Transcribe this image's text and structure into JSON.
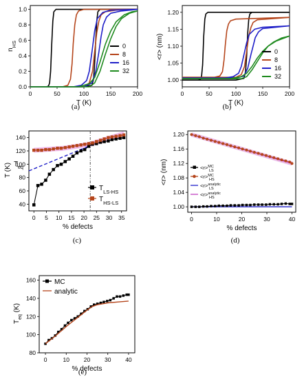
{
  "chart_data": [
    {
      "panel": "(a)",
      "type": "line",
      "xlabel": "T (K)",
      "ylabel": "n",
      "ylabel_sub": "HS",
      "xlim": [
        0,
        200
      ],
      "ylim": [
        0,
        1.05
      ],
      "xticks": [
        "0",
        "50",
        "100",
        "150",
        "200"
      ],
      "yticks": [
        "0.0",
        "0.2",
        "0.4",
        "0.6",
        "0.8",
        "1.0"
      ],
      "legend_position": "inside-right",
      "series": [
        {
          "name": "0",
          "color": "#000000",
          "x": [
            0,
            30,
            34,
            36,
            38,
            40,
            42,
            44,
            48,
            60,
            100,
            150,
            200
          ],
          "y": [
            0.0,
            0.0,
            0.01,
            0.05,
            0.2,
            0.55,
            0.85,
            0.97,
            1.0,
            1.0,
            1.0,
            1.0,
            1.0
          ]
        },
        {
          "name": "0",
          "color": "#000000",
          "x": [
            0,
            50,
            100,
            115,
            118,
            120,
            122,
            124,
            126,
            130,
            150,
            200
          ],
          "y": [
            0.0,
            0.0,
            0.0,
            0.02,
            0.1,
            0.3,
            0.6,
            0.85,
            0.97,
            1.0,
            1.0,
            1.0
          ]
        },
        {
          "name": "8",
          "color": "#b5451b",
          "x": [
            0,
            60,
            70,
            75,
            78,
            80,
            83,
            86,
            90,
            100,
            150,
            200
          ],
          "y": [
            0.0,
            0.0,
            0.02,
            0.1,
            0.3,
            0.55,
            0.8,
            0.93,
            0.98,
            1.0,
            1.0,
            1.0
          ]
        },
        {
          "name": "8",
          "color": "#b5451b",
          "x": [
            0,
            100,
            110,
            116,
            120,
            124,
            128,
            132,
            140,
            160,
            200
          ],
          "y": [
            0.0,
            0.0,
            0.05,
            0.2,
            0.45,
            0.7,
            0.85,
            0.93,
            0.97,
            0.99,
            1.0
          ]
        },
        {
          "name": "16",
          "color": "#1e1ec8",
          "x": [
            0,
            80,
            95,
            105,
            110,
            115,
            120,
            125,
            135,
            150,
            200
          ],
          "y": [
            0.0,
            0.0,
            0.02,
            0.08,
            0.2,
            0.45,
            0.72,
            0.88,
            0.96,
            0.99,
            1.0
          ]
        },
        {
          "name": "16",
          "color": "#1e1ec8",
          "x": [
            0,
            100,
            115,
            122,
            128,
            132,
            136,
            142,
            150,
            170,
            200
          ],
          "y": [
            0.0,
            0.0,
            0.05,
            0.2,
            0.45,
            0.65,
            0.8,
            0.9,
            0.95,
            0.98,
            1.0
          ]
        },
        {
          "name": "32",
          "color": "#1e8a1e",
          "x": [
            0,
            90,
            110,
            120,
            130,
            140,
            150,
            160,
            175,
            190,
            200
          ],
          "y": [
            0.0,
            0.0,
            0.04,
            0.12,
            0.32,
            0.55,
            0.72,
            0.84,
            0.93,
            0.97,
            0.98
          ]
        },
        {
          "name": "32",
          "color": "#1e8a1e",
          "x": [
            0,
            110,
            120,
            130,
            140,
            150,
            160,
            170,
            185,
            200
          ],
          "y": [
            0.0,
            0.0,
            0.05,
            0.2,
            0.42,
            0.62,
            0.78,
            0.88,
            0.95,
            0.98
          ]
        }
      ],
      "legend": [
        {
          "label": "0",
          "color": "#000000"
        },
        {
          "label": "8",
          "color": "#b5451b"
        },
        {
          "label": "16",
          "color": "#1e1ec8"
        },
        {
          "label": "32",
          "color": "#1e8a1e"
        }
      ]
    },
    {
      "panel": "(b)",
      "type": "line",
      "xlabel": "T (K)",
      "ylabel": "<r> (nm)",
      "xlim": [
        0,
        200
      ],
      "ylim": [
        0.98,
        1.22
      ],
      "xticks": [
        "0",
        "50",
        "100",
        "150",
        "200"
      ],
      "yticks": [
        "1.00",
        "1.05",
        "1.10",
        "1.15",
        "1.20"
      ],
      "legend_position": "inside-right",
      "series": [
        {
          "name": "0",
          "color": "#000000",
          "x": [
            0,
            30,
            34,
            36,
            38,
            40,
            42,
            44,
            48,
            60,
            200
          ],
          "y": [
            1.0,
            1.0,
            1.003,
            1.012,
            1.045,
            1.13,
            1.18,
            1.195,
            1.2,
            1.2,
            1.2
          ]
        },
        {
          "name": "0",
          "color": "#000000",
          "x": [
            0,
            100,
            115,
            118,
            120,
            122,
            124,
            126,
            130,
            200
          ],
          "y": [
            1.0,
            1.0,
            1.005,
            1.025,
            1.07,
            1.14,
            1.18,
            1.195,
            1.2,
            1.2
          ]
        },
        {
          "name": "8",
          "color": "#b5451b",
          "x": [
            0,
            60,
            70,
            75,
            78,
            80,
            83,
            86,
            90,
            100,
            200
          ],
          "y": [
            1.008,
            1.008,
            1.012,
            1.025,
            1.06,
            1.1,
            1.145,
            1.165,
            1.175,
            1.18,
            1.185
          ]
        },
        {
          "name": "8",
          "color": "#b5451b",
          "x": [
            0,
            100,
            110,
            116,
            120,
            124,
            128,
            132,
            140,
            200
          ],
          "y": [
            1.008,
            1.008,
            1.016,
            1.04,
            1.085,
            1.13,
            1.155,
            1.17,
            1.178,
            1.185
          ]
        },
        {
          "name": "16",
          "color": "#1e1ec8",
          "x": [
            0,
            80,
            95,
            105,
            110,
            115,
            120,
            125,
            135,
            150,
            200
          ],
          "y": [
            1.006,
            1.006,
            1.01,
            1.02,
            1.04,
            1.075,
            1.11,
            1.135,
            1.15,
            1.156,
            1.16
          ]
        },
        {
          "name": "16",
          "color": "#1e1ec8",
          "x": [
            0,
            100,
            115,
            122,
            128,
            132,
            136,
            142,
            150,
            200
          ],
          "y": [
            1.006,
            1.006,
            1.012,
            1.035,
            1.075,
            1.1,
            1.125,
            1.142,
            1.152,
            1.16
          ]
        },
        {
          "name": "32",
          "color": "#1e8a1e",
          "x": [
            0,
            90,
            110,
            120,
            130,
            140,
            150,
            160,
            175,
            200
          ],
          "y": [
            1.004,
            1.004,
            1.01,
            1.02,
            1.04,
            1.065,
            1.085,
            1.1,
            1.115,
            1.13
          ]
        },
        {
          "name": "32",
          "color": "#1e8a1e",
          "x": [
            0,
            110,
            120,
            130,
            140,
            150,
            160,
            170,
            185,
            200
          ],
          "y": [
            1.004,
            1.004,
            1.01,
            1.03,
            1.055,
            1.08,
            1.1,
            1.112,
            1.124,
            1.13
          ]
        }
      ],
      "legend": [
        {
          "label": "0",
          "color": "#000000"
        },
        {
          "label": "8",
          "color": "#b5451b"
        },
        {
          "label": "16",
          "color": "#1e1ec8"
        },
        {
          "label": "32",
          "color": "#1e8a1e"
        }
      ]
    },
    {
      "panel": "(c)",
      "type": "line",
      "xlabel": "% defects",
      "ylabel": "T (K)",
      "xlim": [
        -2,
        37
      ],
      "ylim": [
        30,
        150
      ],
      "xticks": [
        "0",
        "5",
        "10",
        "15",
        "20",
        "25",
        "30",
        "35"
      ],
      "yticks": [
        "40",
        "60",
        "80",
        "100",
        "120",
        "140"
      ],
      "annotation": {
        "text": "T",
        "sub": "eq",
        "color": "#1e1ec8"
      },
      "vline_x": 22.5,
      "legend_position": "bottom-right",
      "series": [
        {
          "name": "T",
          "name_sub": "LS-HS",
          "color": "#000000",
          "marker": "square",
          "x": [
            0,
            1.6,
            3.1,
            4.7,
            6.2,
            7.8,
            9.4,
            10.9,
            12.5,
            14.1,
            15.6,
            17.2,
            18.8,
            20.3,
            21.9,
            23.4,
            25,
            26.6,
            28.1,
            29.7,
            31.2,
            32.8,
            34.4,
            35.9
          ],
          "y": [
            39,
            68,
            70,
            76,
            85,
            92,
            98,
            100,
            104,
            108,
            112,
            117,
            120,
            122,
            127,
            130,
            131,
            133,
            134,
            135,
            137,
            138,
            139,
            140
          ]
        },
        {
          "name": "T",
          "name_sub": "HS-LS",
          "color": "#b5451b",
          "marker": "square",
          "x": [
            0,
            1.6,
            3.1,
            4.7,
            6.2,
            7.8,
            9.4,
            10.9,
            12.5,
            14.1,
            15.6,
            17.2,
            18.8,
            20.3,
            21.9,
            23.4,
            25,
            26.6,
            28.1,
            29.7,
            31.2,
            32.8,
            34.4,
            35.9
          ],
          "y": [
            121,
            121,
            121,
            122,
            122,
            123,
            124,
            124,
            125,
            126,
            127,
            128,
            129,
            130,
            131,
            132,
            134,
            136,
            138,
            140,
            141,
            142,
            143,
            144
          ]
        },
        {
          "name": "",
          "color": "#1e1ec8",
          "style": "dashed",
          "x": [
            -2,
            22.5
          ],
          "y": [
            90,
            128
          ]
        },
        {
          "name": "",
          "color": "#e070e0",
          "style": "band",
          "x": [
            0,
            12,
            22.5,
            30,
            36
          ],
          "y": [
            121,
            124,
            130,
            139,
            146
          ]
        }
      ]
    },
    {
      "panel": "(d)",
      "type": "line",
      "xlabel": "% defects",
      "ylabel": "<r> (nm)",
      "xlim": [
        -1.5,
        41.5
      ],
      "ylim": [
        0.985,
        1.21
      ],
      "xticks": [
        "0",
        "10",
        "20",
        "30",
        "40"
      ],
      "yticks": [
        "1.00",
        "1.04",
        "1.08",
        "1.12",
        "1.16",
        "1.20"
      ],
      "legend_position": "left",
      "series": [
        {
          "name": "<r>",
          "name_sup": "MC",
          "name_sub": "LS",
          "color": "#000000",
          "marker": "square",
          "x": [
            0,
            1.6,
            3.1,
            4.7,
            6.2,
            7.8,
            9.4,
            10.9,
            12.5,
            14.1,
            15.6,
            17.2,
            18.8,
            20.3,
            21.9,
            23.4,
            25,
            26.6,
            28.1,
            29.7,
            31.2,
            32.8,
            34.4,
            35.9,
            37.5,
            39.1,
            40
          ],
          "y": [
            1.0,
            1.0,
            1.0,
            1.001,
            1.001,
            1.002,
            1.002,
            1.003,
            1.003,
            1.003,
            1.004,
            1.004,
            1.004,
            1.005,
            1.005,
            1.005,
            1.006,
            1.006,
            1.006,
            1.006,
            1.007,
            1.007,
            1.007,
            1.008,
            1.009,
            1.008,
            1.008
          ]
        },
        {
          "name": "<r>",
          "name_sup": "MC",
          "name_sub": "HS",
          "color": "#b5451b",
          "marker": "circle",
          "x": [
            0,
            1.6,
            3.1,
            4.7,
            6.2,
            7.8,
            9.4,
            10.9,
            12.5,
            14.1,
            15.6,
            17.2,
            18.8,
            20.3,
            21.9,
            23.4,
            25,
            26.6,
            28.1,
            29.7,
            31.2,
            32.8,
            34.4,
            35.9,
            37.5,
            39.1,
            40
          ],
          "y": [
            1.2,
            1.197,
            1.194,
            1.19,
            1.187,
            1.184,
            1.181,
            1.178,
            1.175,
            1.172,
            1.169,
            1.166,
            1.163,
            1.16,
            1.157,
            1.154,
            1.151,
            1.148,
            1.145,
            1.142,
            1.139,
            1.136,
            1.133,
            1.13,
            1.127,
            1.124,
            1.12
          ]
        },
        {
          "name": "<r>",
          "name_sup": "analytic",
          "name_sub": "LS",
          "color": "#1e1ec8",
          "x": [
            0,
            40
          ],
          "y": [
            1.0,
            1.0
          ]
        },
        {
          "name": "<r>",
          "name_sup": "analytic",
          "name_sub": "HS",
          "color": "#c040c0",
          "x": [
            0,
            40
          ],
          "y": [
            1.2,
            1.12
          ]
        }
      ]
    },
    {
      "panel": "(e)",
      "type": "line",
      "xlabel": "% defects",
      "ylabel": "T",
      "ylabel_sub": "eq",
      "ylabel_unit": " (K)",
      "xlim": [
        -3,
        43
      ],
      "ylim": [
        80,
        165
      ],
      "xticks": [
        "0",
        "10",
        "20",
        "30",
        "40"
      ],
      "yticks": [
        "80",
        "100",
        "120",
        "140",
        "160"
      ],
      "legend_position": "top-left",
      "series": [
        {
          "name": "MC",
          "color": "#000000",
          "marker": "square",
          "x": [
            0,
            1.6,
            3.1,
            4.7,
            6.2,
            7.8,
            9.4,
            10.9,
            12.5,
            14.1,
            15.6,
            17.2,
            18.8,
            20.3,
            21.9,
            23.4,
            25,
            26.6,
            28.1,
            29.7,
            31.2,
            32.8,
            34.4,
            35.9,
            37.5,
            39.1,
            40
          ],
          "y": [
            90,
            94,
            96,
            99,
            103,
            106,
            110,
            113,
            116,
            118,
            120,
            123,
            126,
            128,
            131,
            133,
            134,
            135,
            136,
            137,
            138,
            140,
            142,
            142,
            143,
            144,
            144
          ]
        },
        {
          "name": "analytic",
          "color": "#b5451b",
          "x": [
            0,
            5,
            10,
            15,
            20,
            22.5,
            25,
            30,
            35,
            40
          ],
          "y": [
            90,
            99,
            109,
            118,
            127,
            131,
            133,
            135,
            136,
            137
          ]
        }
      ]
    }
  ]
}
